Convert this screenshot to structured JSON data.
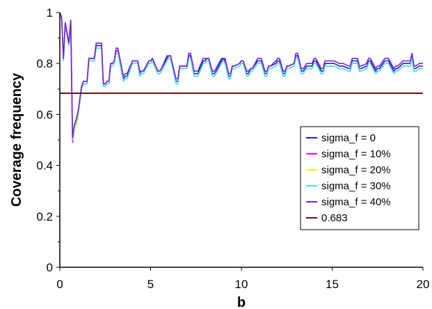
{
  "chart_data": {
    "type": "line",
    "title": "",
    "xlabel": "b",
    "ylabel": "Coverage frequency",
    "xlim": [
      0,
      20
    ],
    "ylim": [
      0,
      1
    ],
    "x_ticks": [
      0,
      5,
      10,
      15,
      20
    ],
    "x_tick_labels": [
      "0",
      "5",
      "10",
      "15",
      "20"
    ],
    "y_ticks": [
      0,
      0.2,
      0.4,
      0.6,
      0.8,
      1
    ],
    "y_tick_labels": [
      "0",
      "0.2",
      "0.4",
      "0.6",
      "0.8",
      "1"
    ],
    "grid": false,
    "legend": "bottom-right",
    "x": [
      0,
      0.1,
      0.2,
      0.3,
      0.4,
      0.5,
      0.6,
      0.7,
      0.8,
      0.9,
      1.0,
      1.2,
      1.3,
      1.4,
      1.5,
      1.6,
      1.9,
      2.0,
      2.1,
      2.3,
      2.4,
      2.5,
      2.6,
      2.7,
      2.8,
      2.9,
      3.0,
      3.1,
      3.2,
      3.5,
      3.6,
      3.7,
      4.0,
      4.1,
      4.2,
      4.3,
      4.4,
      4.5,
      4.6,
      4.9,
      5.0,
      5.1,
      5.4,
      5.5,
      5.6,
      5.9,
      6.0,
      6.1,
      6.4,
      6.5,
      6.6,
      6.9,
      7.0,
      7.1,
      7.2,
      7.4,
      7.5,
      7.6,
      7.9,
      8.0,
      8.1,
      8.2,
      8.4,
      8.5,
      8.6,
      8.9,
      9.0,
      9.1,
      9.3,
      9.4,
      9.5,
      9.6,
      9.9,
      10.0,
      10.1,
      10.3,
      10.4,
      10.5,
      10.6,
      10.9,
      11.0,
      11.1,
      11.3,
      11.4,
      11.5,
      11.6,
      11.9,
      12.0,
      12.1,
      12.3,
      12.4,
      12.5,
      12.6,
      12.9,
      13.0,
      13.1,
      13.3,
      13.4,
      13.5,
      13.6,
      13.9,
      14.0,
      14.1,
      14.4,
      14.5,
      14.6,
      14.9,
      15.0,
      15.1,
      15.4,
      15.5,
      15.6,
      15.9,
      16.0,
      16.1,
      16.4,
      16.5,
      16.6,
      16.9,
      17.0,
      17.1,
      17.4,
      17.5,
      17.6,
      17.9,
      18.0,
      18.1,
      18.4,
      18.5,
      18.6,
      18.9,
      19.0,
      19.1,
      19.3,
      19.4,
      19.5,
      19.6,
      19.8,
      19.9,
      20.0
    ],
    "series": [
      {
        "name": "sigma_f = 0",
        "color": "#1f1fd0",
        "values": [
          1.0,
          0.98,
          0.82,
          0.96,
          0.92,
          0.88,
          0.97,
          0.5,
          0.55,
          0.57,
          0.6,
          0.71,
          0.73,
          0.73,
          0.73,
          0.82,
          0.82,
          0.87,
          0.87,
          0.87,
          0.72,
          0.72,
          0.73,
          0.73,
          0.8,
          0.8,
          0.81,
          0.85,
          0.85,
          0.74,
          0.75,
          0.75,
          0.81,
          0.81,
          0.81,
          0.81,
          0.76,
          0.77,
          0.77,
          0.81,
          0.81,
          0.82,
          0.77,
          0.77,
          0.78,
          0.82,
          0.83,
          0.83,
          0.73,
          0.73,
          0.79,
          0.79,
          0.79,
          0.83,
          0.83,
          0.76,
          0.76,
          0.76,
          0.81,
          0.81,
          0.82,
          0.82,
          0.76,
          0.76,
          0.77,
          0.81,
          0.82,
          0.81,
          0.75,
          0.75,
          0.79,
          0.79,
          0.8,
          0.81,
          0.81,
          0.76,
          0.76,
          0.78,
          0.78,
          0.81,
          0.81,
          0.81,
          0.76,
          0.76,
          0.79,
          0.79,
          0.8,
          0.81,
          0.81,
          0.76,
          0.76,
          0.79,
          0.79,
          0.8,
          0.83,
          0.83,
          0.77,
          0.77,
          0.78,
          0.79,
          0.79,
          0.81,
          0.81,
          0.77,
          0.77,
          0.8,
          0.8,
          0.8,
          0.8,
          0.79,
          0.79,
          0.79,
          0.78,
          0.78,
          0.81,
          0.81,
          0.78,
          0.78,
          0.79,
          0.81,
          0.81,
          0.77,
          0.78,
          0.78,
          0.81,
          0.81,
          0.81,
          0.77,
          0.78,
          0.78,
          0.8,
          0.8,
          0.8,
          0.8,
          0.83,
          0.78,
          0.78,
          0.79,
          0.79,
          0.79
        ]
      },
      {
        "name": "sigma_f = 10%",
        "color": "#ff00ff",
        "values": [
          1.0,
          0.97,
          0.82,
          0.95,
          0.92,
          0.88,
          0.96,
          0.49,
          0.54,
          0.56,
          0.59,
          0.7,
          0.72,
          0.72,
          0.72,
          0.81,
          0.81,
          0.86,
          0.86,
          0.86,
          0.71,
          0.71,
          0.72,
          0.72,
          0.79,
          0.79,
          0.8,
          0.85,
          0.85,
          0.73,
          0.74,
          0.74,
          0.8,
          0.8,
          0.8,
          0.8,
          0.75,
          0.76,
          0.76,
          0.8,
          0.8,
          0.81,
          0.76,
          0.76,
          0.77,
          0.81,
          0.82,
          0.82,
          0.72,
          0.72,
          0.78,
          0.78,
          0.78,
          0.82,
          0.82,
          0.75,
          0.75,
          0.75,
          0.8,
          0.8,
          0.81,
          0.81,
          0.75,
          0.75,
          0.76,
          0.8,
          0.81,
          0.8,
          0.74,
          0.74,
          0.78,
          0.78,
          0.79,
          0.8,
          0.8,
          0.75,
          0.75,
          0.77,
          0.77,
          0.8,
          0.8,
          0.8,
          0.75,
          0.75,
          0.78,
          0.78,
          0.79,
          0.8,
          0.8,
          0.75,
          0.75,
          0.78,
          0.78,
          0.79,
          0.82,
          0.82,
          0.76,
          0.76,
          0.77,
          0.78,
          0.78,
          0.8,
          0.8,
          0.76,
          0.76,
          0.79,
          0.79,
          0.79,
          0.79,
          0.78,
          0.78,
          0.78,
          0.77,
          0.77,
          0.8,
          0.8,
          0.77,
          0.77,
          0.78,
          0.8,
          0.8,
          0.76,
          0.77,
          0.77,
          0.8,
          0.8,
          0.8,
          0.76,
          0.77,
          0.77,
          0.79,
          0.79,
          0.79,
          0.79,
          0.82,
          0.77,
          0.77,
          0.78,
          0.78,
          0.78
        ]
      },
      {
        "name": "sigma_f = 20%",
        "color": "#f0f000",
        "values": [
          1.0,
          0.97,
          0.81,
          0.95,
          0.91,
          0.87,
          0.96,
          0.5,
          0.54,
          0.56,
          0.59,
          0.7,
          0.72,
          0.72,
          0.72,
          0.81,
          0.81,
          0.86,
          0.86,
          0.86,
          0.71,
          0.71,
          0.72,
          0.72,
          0.79,
          0.79,
          0.8,
          0.84,
          0.84,
          0.73,
          0.74,
          0.74,
          0.8,
          0.8,
          0.8,
          0.8,
          0.75,
          0.76,
          0.76,
          0.8,
          0.8,
          0.81,
          0.76,
          0.76,
          0.77,
          0.81,
          0.82,
          0.82,
          0.72,
          0.72,
          0.78,
          0.78,
          0.78,
          0.82,
          0.82,
          0.75,
          0.75,
          0.75,
          0.8,
          0.8,
          0.81,
          0.81,
          0.75,
          0.75,
          0.76,
          0.8,
          0.81,
          0.8,
          0.74,
          0.74,
          0.78,
          0.78,
          0.79,
          0.8,
          0.8,
          0.75,
          0.75,
          0.77,
          0.77,
          0.8,
          0.8,
          0.8,
          0.75,
          0.75,
          0.78,
          0.78,
          0.79,
          0.8,
          0.8,
          0.75,
          0.75,
          0.78,
          0.78,
          0.79,
          0.82,
          0.82,
          0.76,
          0.76,
          0.77,
          0.78,
          0.78,
          0.8,
          0.8,
          0.76,
          0.76,
          0.79,
          0.79,
          0.79,
          0.79,
          0.78,
          0.78,
          0.78,
          0.77,
          0.77,
          0.8,
          0.8,
          0.77,
          0.77,
          0.78,
          0.8,
          0.8,
          0.76,
          0.77,
          0.77,
          0.8,
          0.8,
          0.8,
          0.76,
          0.77,
          0.77,
          0.79,
          0.79,
          0.79,
          0.79,
          0.82,
          0.77,
          0.77,
          0.78,
          0.78,
          0.78
        ]
      },
      {
        "name": "sigma_f = 30%",
        "color": "#40e8e8",
        "values": [
          1.0,
          0.97,
          0.81,
          0.95,
          0.91,
          0.87,
          0.96,
          0.5,
          0.55,
          0.57,
          0.6,
          0.7,
          0.72,
          0.72,
          0.72,
          0.81,
          0.81,
          0.86,
          0.86,
          0.86,
          0.71,
          0.71,
          0.72,
          0.72,
          0.79,
          0.79,
          0.8,
          0.84,
          0.84,
          0.73,
          0.74,
          0.74,
          0.8,
          0.8,
          0.8,
          0.8,
          0.75,
          0.76,
          0.76,
          0.8,
          0.8,
          0.81,
          0.76,
          0.76,
          0.77,
          0.81,
          0.82,
          0.82,
          0.72,
          0.72,
          0.78,
          0.78,
          0.78,
          0.82,
          0.82,
          0.75,
          0.75,
          0.75,
          0.8,
          0.8,
          0.81,
          0.81,
          0.75,
          0.75,
          0.76,
          0.8,
          0.81,
          0.8,
          0.74,
          0.74,
          0.78,
          0.78,
          0.79,
          0.8,
          0.8,
          0.75,
          0.75,
          0.77,
          0.77,
          0.8,
          0.8,
          0.8,
          0.75,
          0.75,
          0.78,
          0.78,
          0.79,
          0.8,
          0.8,
          0.75,
          0.75,
          0.78,
          0.78,
          0.79,
          0.82,
          0.82,
          0.76,
          0.76,
          0.77,
          0.78,
          0.78,
          0.8,
          0.8,
          0.76,
          0.76,
          0.79,
          0.79,
          0.79,
          0.79,
          0.78,
          0.78,
          0.78,
          0.77,
          0.77,
          0.8,
          0.8,
          0.77,
          0.77,
          0.78,
          0.8,
          0.8,
          0.76,
          0.77,
          0.77,
          0.8,
          0.8,
          0.8,
          0.76,
          0.77,
          0.77,
          0.79,
          0.79,
          0.79,
          0.79,
          0.82,
          0.77,
          0.77,
          0.78,
          0.78,
          0.78
        ]
      },
      {
        "name": "sigma_f = 40%",
        "color": "#7a1fd6",
        "values": [
          1.0,
          0.98,
          0.82,
          0.96,
          0.92,
          0.88,
          0.97,
          0.51,
          0.56,
          0.58,
          0.61,
          0.71,
          0.73,
          0.73,
          0.73,
          0.82,
          0.82,
          0.88,
          0.88,
          0.88,
          0.72,
          0.72,
          0.73,
          0.73,
          0.8,
          0.8,
          0.81,
          0.86,
          0.86,
          0.75,
          0.76,
          0.76,
          0.81,
          0.81,
          0.81,
          0.81,
          0.77,
          0.77,
          0.77,
          0.81,
          0.81,
          0.82,
          0.77,
          0.77,
          0.78,
          0.83,
          0.83,
          0.83,
          0.74,
          0.74,
          0.79,
          0.79,
          0.79,
          0.84,
          0.84,
          0.77,
          0.77,
          0.77,
          0.82,
          0.82,
          0.82,
          0.82,
          0.77,
          0.77,
          0.78,
          0.82,
          0.82,
          0.82,
          0.76,
          0.76,
          0.79,
          0.79,
          0.8,
          0.81,
          0.81,
          0.77,
          0.77,
          0.78,
          0.78,
          0.82,
          0.82,
          0.82,
          0.77,
          0.77,
          0.79,
          0.79,
          0.81,
          0.82,
          0.82,
          0.77,
          0.77,
          0.79,
          0.79,
          0.8,
          0.84,
          0.84,
          0.78,
          0.78,
          0.79,
          0.8,
          0.8,
          0.82,
          0.82,
          0.78,
          0.78,
          0.81,
          0.81,
          0.81,
          0.81,
          0.8,
          0.8,
          0.8,
          0.79,
          0.79,
          0.82,
          0.82,
          0.79,
          0.79,
          0.8,
          0.82,
          0.82,
          0.78,
          0.79,
          0.79,
          0.82,
          0.82,
          0.82,
          0.78,
          0.79,
          0.79,
          0.81,
          0.81,
          0.81,
          0.81,
          0.84,
          0.79,
          0.79,
          0.8,
          0.8,
          0.8
        ]
      }
    ],
    "reference_line": {
      "name": "0.683",
      "y": 0.683,
      "color": "#6b0f0f"
    }
  }
}
